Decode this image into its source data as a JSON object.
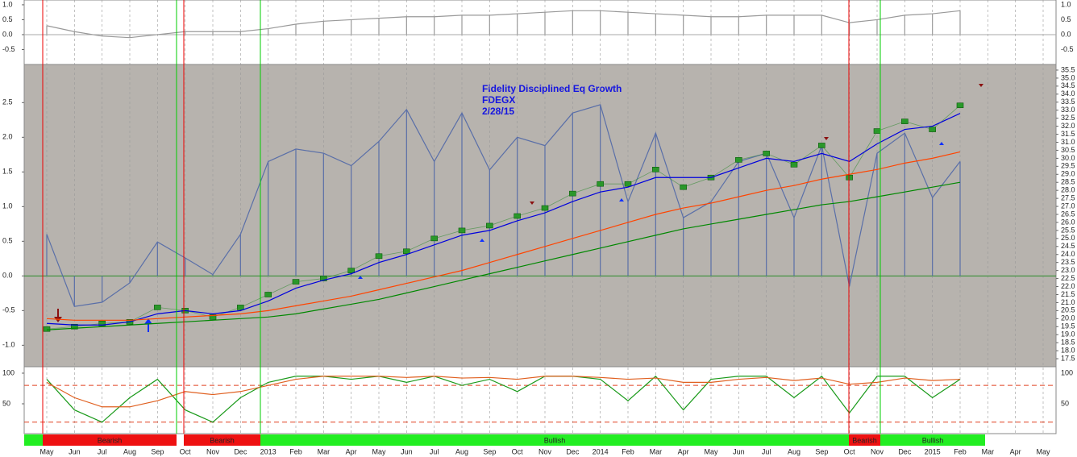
{
  "chart_data": [
    {
      "type": "line",
      "ylim": [
        -1.0,
        1.16
      ],
      "yticks": [
        {
          "value": 1,
          "label": "1.0"
        },
        0.5,
        {
          "value": 0,
          "label": "0.0"
        },
        -0.5
      ],
      "series": [
        {
          "color": "#999999",
          "bars": true,
          "values": [
            0.3,
            0.1,
            -0.05,
            -0.1,
            0.0,
            0.1,
            0.1,
            0.1,
            0.2,
            0.35,
            0.45,
            0.5,
            0.55,
            0.6,
            0.6,
            0.65,
            0.65,
            0.7,
            0.75,
            0.8,
            0.8,
            0.75,
            0.7,
            0.65,
            0.6,
            0.6,
            0.65,
            0.65,
            0.65,
            0.4,
            0.5,
            0.65,
            0.7,
            0.8,
            null,
            null,
            null
          ]
        }
      ]
    },
    {
      "type": "line",
      "title": [
        "Fidelity Disciplined Eq Growth",
        "FDEGX",
        "2/28/15"
      ],
      "categories": [
        "May",
        "Jun",
        "Jul",
        "Aug",
        "Sep",
        "Oct",
        "Nov",
        "Dec",
        "2013",
        "Feb",
        "Mar",
        "Apr",
        "May",
        "Jun",
        "Jul",
        "Aug",
        "Sep",
        "Oct",
        "Nov",
        "Dec",
        "2014",
        "Feb",
        "Mar",
        "Apr",
        "May",
        "Jun",
        "Jul",
        "Aug",
        "Sep",
        "Oct",
        "Nov",
        "Dec",
        "2015",
        "Feb",
        "Mar",
        "Apr",
        "May"
      ],
      "ylim": [
        -1.31,
        3.05
      ],
      "yticks": [
        2.5,
        {
          "value": 2,
          "label": "2.0"
        },
        1.5,
        {
          "value": 1,
          "label": "1.0"
        },
        0.5,
        {
          "value": 0,
          "label": "0.0"
        },
        -0.5,
        {
          "value": -1,
          "label": "-1.0"
        }
      ],
      "y2lim": [
        17.0,
        35.85
      ],
      "y2ticks": [
        35.5,
        {
          "value": 35,
          "label": "35.0"
        },
        34.5,
        {
          "value": 34,
          "label": "34.0"
        },
        33.5,
        {
          "value": 33,
          "label": "33.0"
        },
        32.5,
        {
          "value": 32,
          "label": "32.0"
        },
        31.5,
        {
          "value": 31,
          "label": "31.0"
        },
        30.5,
        {
          "value": 30,
          "label": "30.0"
        },
        29.5,
        {
          "value": 29,
          "label": "29.0"
        },
        28.5,
        {
          "value": 28,
          "label": "28.0"
        },
        27.5,
        {
          "value": 27,
          "label": "27.0"
        },
        26.5,
        {
          "value": 26,
          "label": "26.0"
        },
        25.5,
        {
          "value": 25,
          "label": "25.0"
        },
        24.5,
        {
          "value": 24,
          "label": "24.0"
        },
        23.5,
        {
          "value": 23,
          "label": "23.0"
        },
        22.5,
        {
          "value": 22,
          "label": "22.0"
        },
        21.5,
        {
          "value": 21,
          "label": "21.0"
        },
        20.5,
        {
          "value": 20,
          "label": "20.0"
        },
        19.5,
        {
          "value": 19,
          "label": "19.0"
        },
        18.5,
        {
          "value": 18,
          "label": "18.0"
        },
        17.5
      ],
      "series": [
        {
          "color": "#5a6fa8",
          "bars": true,
          "values": [
            0.6,
            -0.44,
            -0.38,
            -0.1,
            0.49,
            0.26,
            0.02,
            0.6,
            1.65,
            1.83,
            1.77,
            1.59,
            1.94,
            2.4,
            1.65,
            2.35,
            1.53,
            2.0,
            1.88,
            2.35,
            2.47,
            1.07,
            2.06,
            0.84,
            1.07,
            1.65,
            1.77,
            0.84,
            1.88,
            -0.15,
            1.77,
            2.06,
            1.13,
            1.65,
            null,
            null,
            null
          ]
        },
        {
          "color": "#2e8b2e",
          "axis": "y2",
          "markers": true,
          "values": [
            19.35,
            19.5,
            19.7,
            19.8,
            20.7,
            20.5,
            20.1,
            20.7,
            21.5,
            22.3,
            22.5,
            23.0,
            23.9,
            24.2,
            25.0,
            25.5,
            25.8,
            26.4,
            26.9,
            27.8,
            28.4,
            28.4,
            29.3,
            28.2,
            28.8,
            29.9,
            30.3,
            29.6,
            30.8,
            28.8,
            31.7,
            32.3,
            31.8,
            33.3,
            null,
            null,
            null
          ]
        },
        {
          "color": "#0000dd",
          "axis": "y2",
          "values": [
            19.7,
            19.6,
            19.6,
            19.8,
            20.3,
            20.5,
            20.3,
            20.5,
            21.1,
            21.9,
            22.4,
            22.8,
            23.5,
            24.0,
            24.6,
            25.2,
            25.5,
            26.1,
            26.6,
            27.3,
            27.9,
            28.2,
            28.8,
            28.8,
            28.8,
            29.4,
            30.0,
            29.8,
            30.3,
            29.8,
            30.9,
            31.8,
            32.0,
            32.8,
            null,
            null,
            null
          ]
        },
        {
          "color": "#ff4400",
          "axis": "y2",
          "values": [
            20.0,
            19.9,
            19.9,
            19.9,
            20.0,
            20.1,
            20.2,
            20.3,
            20.5,
            20.8,
            21.1,
            21.4,
            21.8,
            22.2,
            22.6,
            23.0,
            23.5,
            24.0,
            24.5,
            25.0,
            25.5,
            26.0,
            26.5,
            26.9,
            27.2,
            27.6,
            28.0,
            28.3,
            28.7,
            29.0,
            29.3,
            29.7,
            30.0,
            30.4,
            null,
            null,
            null
          ]
        },
        {
          "color": "#008800",
          "axis": "y2",
          "values": [
            19.3,
            19.4,
            19.5,
            19.6,
            19.7,
            19.8,
            19.9,
            20.0,
            20.1,
            20.3,
            20.6,
            20.9,
            21.2,
            21.6,
            22.0,
            22.4,
            22.8,
            23.2,
            23.6,
            24.0,
            24.4,
            24.8,
            25.2,
            25.6,
            25.9,
            26.2,
            26.5,
            26.8,
            27.1,
            27.3,
            27.6,
            27.9,
            28.2,
            28.5,
            null,
            null,
            null
          ]
        }
      ]
    },
    {
      "type": "line",
      "ylim": [
        1.3,
        110.5
      ],
      "yticks": [
        100,
        50
      ],
      "reference_lines": [
        80,
        20
      ],
      "series": [
        {
          "color": "#1a9a1a",
          "values": [
            90,
            40,
            20,
            60,
            90,
            40,
            20,
            60,
            85,
            95,
            95,
            90,
            95,
            85,
            95,
            80,
            90,
            70,
            95,
            95,
            90,
            55,
            95,
            40,
            90,
            95,
            95,
            60,
            95,
            35,
            95,
            95,
            60,
            90,
            null,
            null,
            null
          ]
        },
        {
          "color": "#e06020",
          "values": [
            85,
            60,
            45,
            45,
            55,
            70,
            65,
            70,
            80,
            90,
            95,
            95,
            95,
            93,
            95,
            92,
            93,
            90,
            95,
            95,
            93,
            90,
            92,
            85,
            85,
            90,
            93,
            88,
            92,
            82,
            85,
            92,
            88,
            90,
            null,
            null,
            null
          ]
        }
      ]
    }
  ],
  "signals": [
    {
      "label": "Bearish",
      "color": "#ee1111"
    },
    {
      "label": "Bearish",
      "color": "#ee1111"
    },
    {
      "label": "Bullish",
      "color": "#22ee22"
    },
    {
      "label": "Bearish",
      "color": "#ee1111"
    },
    {
      "label": "Bullish",
      "color": "#22ee22"
    }
  ]
}
